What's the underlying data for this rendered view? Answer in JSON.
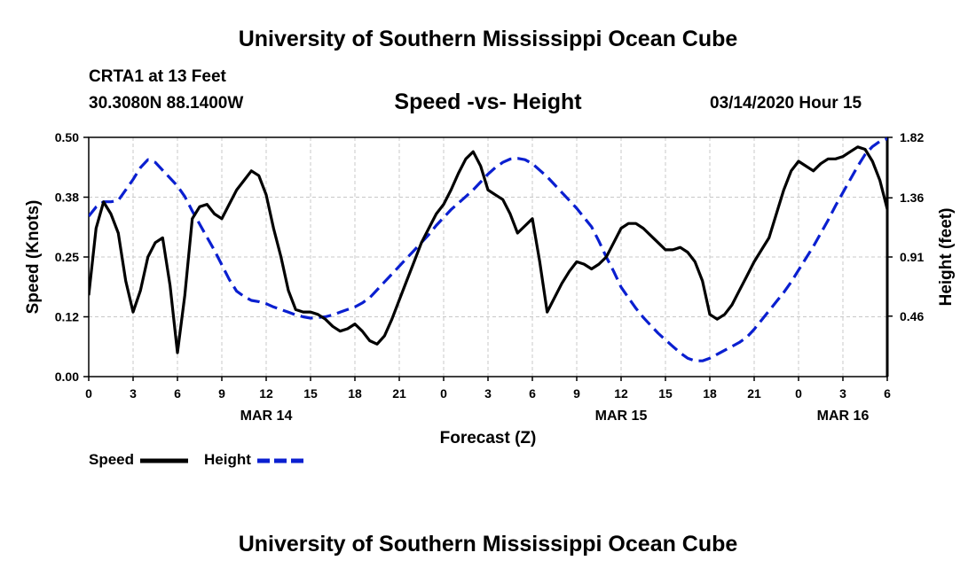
{
  "header": {
    "title": "University of Southern Mississippi Ocean Cube"
  },
  "footer": {
    "title": "University of Southern Mississippi Ocean Cube"
  },
  "station": {
    "name": "CRTA1 at 13 Feet",
    "coords": "30.3080N 88.1400W"
  },
  "chart_data": {
    "type": "line",
    "title": "Speed -vs- Height",
    "timestamp": "03/14/2020 Hour 15",
    "xlabel": "Forecast (Z)",
    "ylabel_left": "Speed (Knots)",
    "ylabel_right": "Height (feet)",
    "x_range_hours": [
      0,
      54
    ],
    "ylim_left": [
      0,
      0.5
    ],
    "ylim_right": [
      0,
      1.82
    ],
    "x_ticks": [
      {
        "h": 0,
        "label": "0"
      },
      {
        "h": 3,
        "label": "3"
      },
      {
        "h": 6,
        "label": "6"
      },
      {
        "h": 9,
        "label": "9"
      },
      {
        "h": 12,
        "label": "12"
      },
      {
        "h": 15,
        "label": "15"
      },
      {
        "h": 18,
        "label": "18"
      },
      {
        "h": 21,
        "label": "21"
      },
      {
        "h": 24,
        "label": "0"
      },
      {
        "h": 27,
        "label": "3"
      },
      {
        "h": 30,
        "label": "6"
      },
      {
        "h": 33,
        "label": "9"
      },
      {
        "h": 36,
        "label": "12"
      },
      {
        "h": 39,
        "label": "15"
      },
      {
        "h": 42,
        "label": "18"
      },
      {
        "h": 45,
        "label": "21"
      },
      {
        "h": 48,
        "label": "0"
      },
      {
        "h": 51,
        "label": "3"
      },
      {
        "h": 54,
        "label": "6"
      }
    ],
    "date_labels": [
      {
        "h": 12,
        "label": "MAR 14"
      },
      {
        "h": 36,
        "label": "MAR 15"
      },
      {
        "h": 51,
        "label": "MAR 16"
      }
    ],
    "left_ticks": [
      {
        "v": 0.0,
        "label": "0.00"
      },
      {
        "v": 0.125,
        "label": "0.12"
      },
      {
        "v": 0.25,
        "label": "0.25"
      },
      {
        "v": 0.375,
        "label": "0.38"
      },
      {
        "v": 0.5,
        "label": "0.50"
      }
    ],
    "right_ticks": [
      {
        "v": 0.46,
        "label": "0.46"
      },
      {
        "v": 0.91,
        "label": "0.91"
      },
      {
        "v": 1.36,
        "label": "1.36"
      },
      {
        "v": 1.82,
        "label": "1.82"
      }
    ],
    "series": [
      {
        "name": "Speed",
        "axis": "left",
        "color": "#000000",
        "dashed": false,
        "points": [
          [
            0,
            0.17
          ],
          [
            0.5,
            0.31
          ],
          [
            1,
            0.365
          ],
          [
            1.5,
            0.34
          ],
          [
            2,
            0.3
          ],
          [
            2.5,
            0.2
          ],
          [
            3,
            0.135
          ],
          [
            3.5,
            0.18
          ],
          [
            4,
            0.25
          ],
          [
            4.5,
            0.28
          ],
          [
            5,
            0.29
          ],
          [
            5.5,
            0.19
          ],
          [
            6,
            0.05
          ],
          [
            6.5,
            0.17
          ],
          [
            7,
            0.33
          ],
          [
            7.5,
            0.355
          ],
          [
            8,
            0.36
          ],
          [
            8.5,
            0.34
          ],
          [
            9,
            0.33
          ],
          [
            9.5,
            0.36
          ],
          [
            10,
            0.39
          ],
          [
            10.5,
            0.41
          ],
          [
            11,
            0.43
          ],
          [
            11.5,
            0.42
          ],
          [
            12,
            0.38
          ],
          [
            12.5,
            0.31
          ],
          [
            13,
            0.25
          ],
          [
            13.5,
            0.18
          ],
          [
            14,
            0.14
          ],
          [
            14.5,
            0.135
          ],
          [
            15,
            0.135
          ],
          [
            15.5,
            0.13
          ],
          [
            16,
            0.12
          ],
          [
            16.5,
            0.105
          ],
          [
            17,
            0.095
          ],
          [
            17.5,
            0.1
          ],
          [
            18,
            0.11
          ],
          [
            18.5,
            0.095
          ],
          [
            19,
            0.075
          ],
          [
            19.5,
            0.068
          ],
          [
            20,
            0.085
          ],
          [
            20.5,
            0.12
          ],
          [
            21,
            0.16
          ],
          [
            21.5,
            0.2
          ],
          [
            22,
            0.24
          ],
          [
            22.5,
            0.28
          ],
          [
            23,
            0.31
          ],
          [
            23.5,
            0.34
          ],
          [
            24,
            0.36
          ],
          [
            24.5,
            0.39
          ],
          [
            25,
            0.425
          ],
          [
            25.5,
            0.455
          ],
          [
            26,
            0.47
          ],
          [
            26.5,
            0.44
          ],
          [
            27,
            0.39
          ],
          [
            27.5,
            0.38
          ],
          [
            28,
            0.37
          ],
          [
            28.5,
            0.34
          ],
          [
            29,
            0.3
          ],
          [
            29.5,
            0.315
          ],
          [
            30,
            0.33
          ],
          [
            30.5,
            0.24
          ],
          [
            31,
            0.135
          ],
          [
            31.5,
            0.165
          ],
          [
            32,
            0.195
          ],
          [
            32.5,
            0.22
          ],
          [
            33,
            0.24
          ],
          [
            33.5,
            0.235
          ],
          [
            34,
            0.225
          ],
          [
            34.5,
            0.235
          ],
          [
            35,
            0.25
          ],
          [
            35.5,
            0.28
          ],
          [
            36,
            0.31
          ],
          [
            36.5,
            0.32
          ],
          [
            37,
            0.32
          ],
          [
            37.5,
            0.31
          ],
          [
            38,
            0.295
          ],
          [
            38.5,
            0.28
          ],
          [
            39,
            0.265
          ],
          [
            39.5,
            0.265
          ],
          [
            40,
            0.27
          ],
          [
            40.5,
            0.26
          ],
          [
            41,
            0.24
          ],
          [
            41.5,
            0.2
          ],
          [
            42,
            0.13
          ],
          [
            42.5,
            0.12
          ],
          [
            43,
            0.13
          ],
          [
            43.5,
            0.15
          ],
          [
            44,
            0.18
          ],
          [
            44.5,
            0.21
          ],
          [
            45,
            0.24
          ],
          [
            45.5,
            0.265
          ],
          [
            46,
            0.29
          ],
          [
            46.5,
            0.34
          ],
          [
            47,
            0.39
          ],
          [
            47.5,
            0.43
          ],
          [
            48,
            0.45
          ],
          [
            48.5,
            0.44
          ],
          [
            49,
            0.43
          ],
          [
            49.5,
            0.445
          ],
          [
            50,
            0.455
          ],
          [
            50.5,
            0.455
          ],
          [
            51,
            0.46
          ],
          [
            51.5,
            0.47
          ],
          [
            52,
            0.48
          ],
          [
            52.5,
            0.475
          ],
          [
            53,
            0.45
          ],
          [
            53.5,
            0.41
          ],
          [
            54,
            0.35
          ]
        ]
      },
      {
        "name": "Height",
        "axis": "right",
        "color": "#0a1fd0",
        "dashed": true,
        "points": [
          [
            0,
            1.22
          ],
          [
            0.5,
            1.29
          ],
          [
            1,
            1.33
          ],
          [
            1.5,
            1.33
          ],
          [
            2,
            1.34
          ],
          [
            2.5,
            1.42
          ],
          [
            3,
            1.5
          ],
          [
            3.5,
            1.59
          ],
          [
            4,
            1.65
          ],
          [
            4.5,
            1.63
          ],
          [
            5,
            1.57
          ],
          [
            5.5,
            1.51
          ],
          [
            6,
            1.45
          ],
          [
            6.5,
            1.37
          ],
          [
            7,
            1.26
          ],
          [
            7.5,
            1.16
          ],
          [
            8,
            1.06
          ],
          [
            8.5,
            0.96
          ],
          [
            9,
            0.85
          ],
          [
            9.5,
            0.74
          ],
          [
            10,
            0.65
          ],
          [
            10.5,
            0.61
          ],
          [
            11,
            0.58
          ],
          [
            11.5,
            0.57
          ],
          [
            12,
            0.555
          ],
          [
            12.5,
            0.53
          ],
          [
            13,
            0.51
          ],
          [
            13.5,
            0.49
          ],
          [
            14,
            0.47
          ],
          [
            14.5,
            0.455
          ],
          [
            15,
            0.445
          ],
          [
            15.5,
            0.45
          ],
          [
            16,
            0.455
          ],
          [
            16.5,
            0.47
          ],
          [
            17,
            0.49
          ],
          [
            17.5,
            0.51
          ],
          [
            18,
            0.53
          ],
          [
            18.5,
            0.56
          ],
          [
            19,
            0.6
          ],
          [
            19.5,
            0.66
          ],
          [
            20,
            0.72
          ],
          [
            20.5,
            0.78
          ],
          [
            21,
            0.84
          ],
          [
            21.5,
            0.9
          ],
          [
            22,
            0.96
          ],
          [
            22.5,
            1.02
          ],
          [
            23,
            1.08
          ],
          [
            23.5,
            1.15
          ],
          [
            24,
            1.21
          ],
          [
            24.5,
            1.27
          ],
          [
            25,
            1.32
          ],
          [
            25.5,
            1.37
          ],
          [
            26,
            1.42
          ],
          [
            26.5,
            1.48
          ],
          [
            27,
            1.54
          ],
          [
            27.5,
            1.59
          ],
          [
            28,
            1.63
          ],
          [
            28.5,
            1.655
          ],
          [
            29,
            1.66
          ],
          [
            29.5,
            1.65
          ],
          [
            30,
            1.62
          ],
          [
            30.5,
            1.57
          ],
          [
            31,
            1.52
          ],
          [
            31.5,
            1.46
          ],
          [
            32,
            1.4
          ],
          [
            32.5,
            1.34
          ],
          [
            33,
            1.28
          ],
          [
            33.5,
            1.21
          ],
          [
            34,
            1.14
          ],
          [
            34.5,
            1.03
          ],
          [
            35,
            0.91
          ],
          [
            35.5,
            0.8
          ],
          [
            36,
            0.68
          ],
          [
            36.5,
            0.6
          ],
          [
            37,
            0.52
          ],
          [
            37.5,
            0.45
          ],
          [
            38,
            0.39
          ],
          [
            38.5,
            0.33
          ],
          [
            39,
            0.28
          ],
          [
            39.5,
            0.23
          ],
          [
            40,
            0.18
          ],
          [
            40.5,
            0.14
          ],
          [
            41,
            0.12
          ],
          [
            41.5,
            0.12
          ],
          [
            42,
            0.14
          ],
          [
            42.5,
            0.17
          ],
          [
            43,
            0.2
          ],
          [
            43.5,
            0.23
          ],
          [
            44,
            0.26
          ],
          [
            44.5,
            0.3
          ],
          [
            45,
            0.36
          ],
          [
            45.5,
            0.43
          ],
          [
            46,
            0.5
          ],
          [
            46.5,
            0.57
          ],
          [
            47,
            0.64
          ],
          [
            47.5,
            0.72
          ],
          [
            48,
            0.81
          ],
          [
            48.5,
            0.9
          ],
          [
            49,
            0.99
          ],
          [
            49.5,
            1.09
          ],
          [
            50,
            1.19
          ],
          [
            50.5,
            1.3
          ],
          [
            51,
            1.4
          ],
          [
            51.5,
            1.5
          ],
          [
            52,
            1.6
          ],
          [
            52.5,
            1.69
          ],
          [
            53,
            1.75
          ],
          [
            53.5,
            1.79
          ],
          [
            54,
            1.81
          ]
        ]
      }
    ]
  }
}
